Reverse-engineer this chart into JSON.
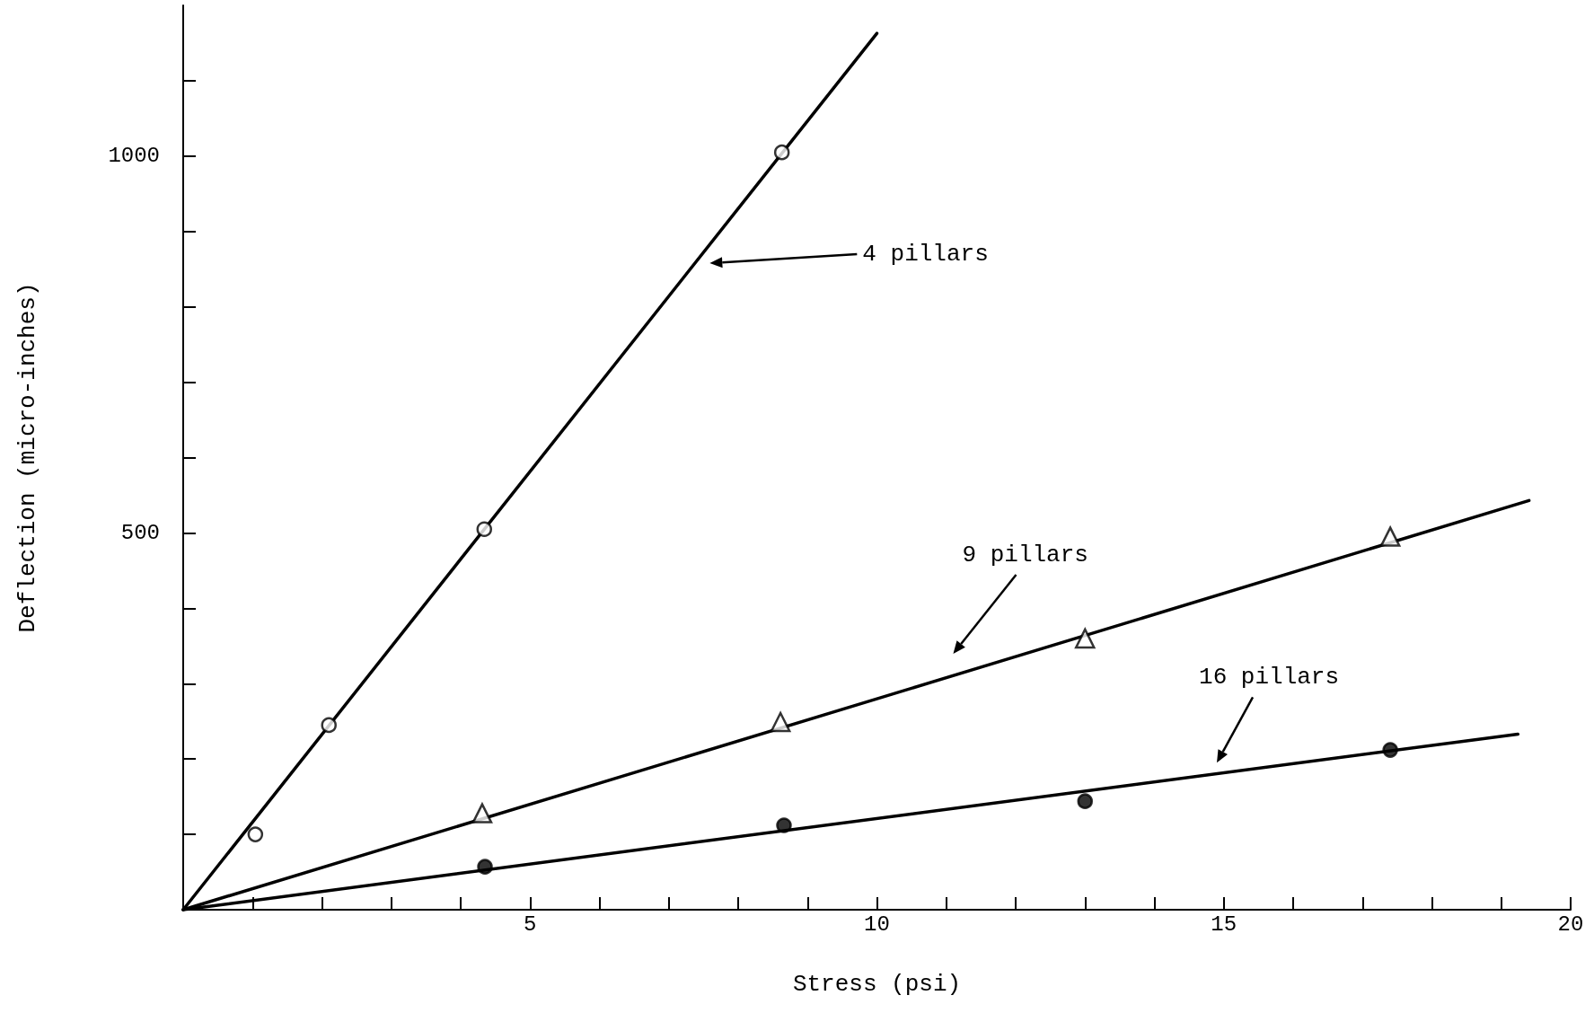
{
  "chart_data": {
    "type": "scatter",
    "xlabel": "Stress (psi)",
    "ylabel": "Deflection (micro-inches)",
    "xlim": [
      0,
      20
    ],
    "ylim": [
      0,
      1200
    ],
    "xticks": [
      {
        "value": 0,
        "label": null
      },
      {
        "value": 1,
        "label": null
      },
      {
        "value": 2,
        "label": null
      },
      {
        "value": 3,
        "label": null
      },
      {
        "value": 4,
        "label": null
      },
      5,
      {
        "value": 6,
        "label": null
      },
      {
        "value": 7,
        "label": null
      },
      {
        "value": 8,
        "label": null
      },
      {
        "value": 9,
        "label": null
      },
      10,
      {
        "value": 11,
        "label": null
      },
      {
        "value": 12,
        "label": null
      },
      {
        "value": 13,
        "label": null
      },
      {
        "value": 14,
        "label": null
      },
      15,
      {
        "value": 16,
        "label": null
      },
      {
        "value": 17,
        "label": null
      },
      {
        "value": 18,
        "label": null
      },
      {
        "value": 19,
        "label": null
      },
      20
    ],
    "yticks": [
      {
        "value": 0,
        "label": null
      },
      {
        "value": 100,
        "label": null
      },
      {
        "value": 200,
        "label": null
      },
      {
        "value": 300,
        "label": null
      },
      {
        "value": 400,
        "label": null
      },
      500,
      {
        "value": 600,
        "label": null
      },
      {
        "value": 700,
        "label": null
      },
      {
        "value": 800,
        "label": null
      },
      {
        "value": 900,
        "label": null
      },
      1000,
      {
        "value": 1100,
        "label": null
      }
    ],
    "series": [
      {
        "marker": "circle",
        "color": "#ffffff",
        "x": [
          1.04,
          2.1,
          4.34,
          8.63
        ],
        "values": [
          100,
          245,
          505,
          1005
        ]
      },
      {
        "marker": "triangle",
        "color": "#ffffff",
        "x": [
          4.31,
          8.61,
          13.0,
          17.4
        ],
        "values": [
          128,
          249,
          360,
          495
        ]
      },
      {
        "marker": "circle",
        "color": "#000000",
        "x": [
          4.35,
          8.66,
          13.0,
          17.4
        ],
        "values": [
          57,
          112,
          144,
          212
        ]
      },
      {
        "type": "line",
        "marker": "none",
        "color": "#000000",
        "x": [
          0,
          10.0
        ],
        "values": [
          0,
          1163
        ]
      },
      {
        "type": "line",
        "marker": "none",
        "color": "#000000",
        "x": [
          0,
          19.4
        ],
        "values": [
          0,
          543
        ]
      },
      {
        "type": "line",
        "marker": "none",
        "color": "#000000",
        "x": [
          0,
          19.24
        ],
        "values": [
          0,
          233
        ]
      }
    ],
    "annotations": [
      "4 pillars",
      "9 pillars",
      "16 pillars"
    ]
  }
}
